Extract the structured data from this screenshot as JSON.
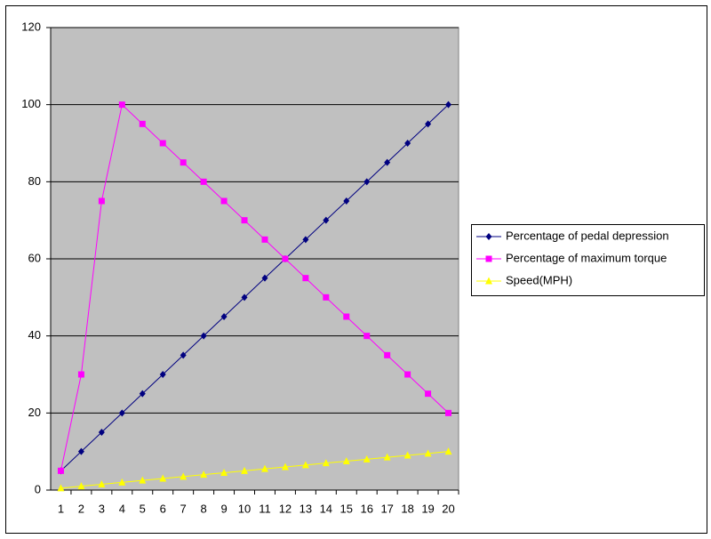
{
  "chart_data": {
    "type": "line",
    "categories": [
      1,
      2,
      3,
      4,
      5,
      6,
      7,
      8,
      9,
      10,
      11,
      12,
      13,
      14,
      15,
      16,
      17,
      18,
      19,
      20
    ],
    "series": [
      {
        "name": "Percentage of pedal depression",
        "color": "#000080",
        "marker": "diamond",
        "values": [
          5,
          10,
          15,
          20,
          25,
          30,
          35,
          40,
          45,
          50,
          55,
          60,
          65,
          70,
          75,
          80,
          85,
          90,
          95,
          100
        ]
      },
      {
        "name": "Percentage of maximum torque",
        "color": "#ff00ff",
        "marker": "square",
        "values": [
          5,
          30,
          75,
          100,
          95,
          90,
          85,
          80,
          75,
          70,
          65,
          60,
          55,
          50,
          45,
          40,
          35,
          30,
          25,
          20
        ]
      },
      {
        "name": "Speed(MPH)",
        "color": "#ffff00",
        "marker": "triangle",
        "values": [
          0.5,
          1,
          1.5,
          2,
          2.5,
          3,
          3.5,
          4,
          4.5,
          5,
          5.5,
          6,
          6.5,
          7,
          7.5,
          8,
          8.5,
          9,
          9.5,
          10
        ]
      }
    ],
    "ylim": [
      0,
      120
    ],
    "yticks": [
      0,
      20,
      40,
      60,
      80,
      100,
      120
    ],
    "grid": true,
    "legend": "right"
  }
}
